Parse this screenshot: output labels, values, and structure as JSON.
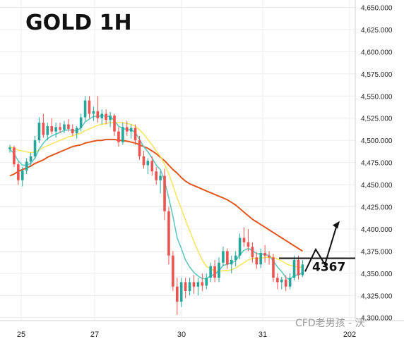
{
  "chart_data": {
    "type": "candlestick",
    "title": "GOLD 1H",
    "y_ticks": [
      "4,650.000",
      "4,625.000",
      "4,600.000",
      "4,575.000",
      "4,550.000",
      "4,525.000",
      "4,500.000",
      "4,475.000",
      "4,450.000",
      "4,425.000",
      "4,400.000",
      "4,375.000",
      "4,350.000",
      "4,325.000",
      "4,300.000"
    ],
    "y_tick_values": [
      4650,
      4625,
      4600,
      4575,
      4550,
      4525,
      4500,
      4475,
      4450,
      4425,
      4400,
      4375,
      4350,
      4325,
      4300
    ],
    "x_ticks": [
      "25",
      "27",
      "30",
      "31",
      "202"
    ],
    "ylim": [
      4299,
      4652
    ],
    "grid": true,
    "level": {
      "value": 4367,
      "label": "4367"
    },
    "watermark": "CFD老男孩 - 沃",
    "colors": {
      "up": "#26a69a",
      "down": "#ef5350",
      "fast_ma": "#5ec8c0",
      "mid_ma": "#f5e663",
      "slow_ma": "#e0561e",
      "grid": "#ececec"
    },
    "candles": [
      [
        4490,
        4495,
        4486,
        4492
      ],
      [
        4492,
        4494,
        4470,
        4473
      ],
      [
        4473,
        4476,
        4450,
        4455
      ],
      [
        4455,
        4470,
        4448,
        4466
      ],
      [
        4466,
        4480,
        4462,
        4476
      ],
      [
        4476,
        4486,
        4470,
        4482
      ],
      [
        4482,
        4505,
        4479,
        4500
      ],
      [
        4500,
        4526,
        4497,
        4520
      ],
      [
        4520,
        4530,
        4503,
        4506
      ],
      [
        4506,
        4520,
        4500,
        4516
      ],
      [
        4516,
        4525,
        4507,
        4510
      ],
      [
        4510,
        4520,
        4503,
        4515
      ],
      [
        4515,
        4520,
        4508,
        4512
      ],
      [
        4512,
        4522,
        4508,
        4518
      ],
      [
        4518,
        4524,
        4510,
        4513
      ],
      [
        4513,
        4518,
        4505,
        4508
      ],
      [
        4508,
        4516,
        4502,
        4514
      ],
      [
        4514,
        4530,
        4510,
        4526
      ],
      [
        4526,
        4550,
        4522,
        4545
      ],
      [
        4545,
        4550,
        4525,
        4530
      ],
      [
        4530,
        4538,
        4522,
        4533
      ],
      [
        4533,
        4550,
        4520,
        4525
      ],
      [
        4525,
        4535,
        4518,
        4530
      ],
      [
        4530,
        4535,
        4518,
        4523
      ],
      [
        4523,
        4532,
        4515,
        4528
      ],
      [
        4528,
        4530,
        4505,
        4510
      ],
      [
        4510,
        4515,
        4493,
        4498
      ],
      [
        4498,
        4520,
        4495,
        4515
      ],
      [
        4515,
        4522,
        4505,
        4510
      ],
      [
        4510,
        4518,
        4502,
        4514
      ],
      [
        4514,
        4518,
        4495,
        4500
      ],
      [
        4500,
        4505,
        4478,
        4482
      ],
      [
        4482,
        4488,
        4468,
        4472
      ],
      [
        4472,
        4480,
        4462,
        4477
      ],
      [
        4477,
        4482,
        4460,
        4465
      ],
      [
        4465,
        4470,
        4450,
        4455
      ],
      [
        4455,
        4465,
        4440,
        4460
      ],
      [
        4460,
        4468,
        4410,
        4420
      ],
      [
        4420,
        4425,
        4360,
        4370
      ],
      [
        4370,
        4375,
        4330,
        4335
      ],
      [
        4335,
        4345,
        4303,
        4318
      ],
      [
        4318,
        4345,
        4312,
        4340
      ],
      [
        4340,
        4345,
        4322,
        4330
      ],
      [
        4330,
        4345,
        4325,
        4340
      ],
      [
        4340,
        4348,
        4327,
        4335
      ],
      [
        4335,
        4345,
        4325,
        4340
      ],
      [
        4340,
        4350,
        4330,
        4336
      ],
      [
        4336,
        4350,
        4332,
        4345
      ],
      [
        4345,
        4362,
        4340,
        4358
      ],
      [
        4358,
        4365,
        4340,
        4345
      ],
      [
        4345,
        4368,
        4340,
        4362
      ],
      [
        4362,
        4380,
        4358,
        4375
      ],
      [
        4375,
        4378,
        4355,
        4360
      ],
      [
        4360,
        4370,
        4350,
        4365
      ],
      [
        4365,
        4375,
        4358,
        4370
      ],
      [
        4370,
        4395,
        4366,
        4390
      ],
      [
        4390,
        4402,
        4380,
        4385
      ],
      [
        4385,
        4400,
        4375,
        4380
      ],
      [
        4380,
        4385,
        4362,
        4368
      ],
      [
        4368,
        4374,
        4355,
        4360
      ],
      [
        4360,
        4378,
        4356,
        4373
      ],
      [
        4373,
        4382,
        4362,
        4370
      ],
      [
        4370,
        4375,
        4360,
        4368
      ],
      [
        4368,
        4372,
        4340,
        4345
      ],
      [
        4345,
        4350,
        4332,
        4340
      ],
      [
        4340,
        4346,
        4332,
        4343
      ],
      [
        4343,
        4348,
        4330,
        4335
      ],
      [
        4335,
        4350,
        4332,
        4345
      ],
      [
        4345,
        4370,
        4342,
        4365
      ],
      [
        4365,
        4370,
        4343,
        4348
      ],
      [
        4348,
        4365,
        4346,
        4360
      ]
    ],
    "ma_fast": [
      4490,
      4485,
      4477,
      4472,
      4472,
      4474,
      4480,
      4490,
      4497,
      4502,
      4505,
      4507,
      4509,
      4511,
      4512,
      4511,
      4511,
      4514,
      4521,
      4524,
      4527,
      4527,
      4528,
      4527,
      4527,
      4522,
      4516,
      4514,
      4512,
      4512,
      4509,
      4501,
      4493,
      4487,
      4480,
      4472,
      4467,
      4454,
      4435,
      4414,
      4390,
      4378,
      4365,
      4357,
      4351,
      4347,
      4344,
      4344,
      4347,
      4349,
      4353,
      4359,
      4360,
      4362,
      4364,
      4371,
      4376,
      4378,
      4376,
      4372,
      4372,
      4371,
      4370,
      4364,
      4357,
      4352,
      4345,
      4343,
      4348,
      4348,
      4351
    ],
    "ma_mid": [
      4493,
      4491,
      4489,
      4488,
      4487,
      4486,
      4487,
      4489,
      4492,
      4494,
      4496,
      4498,
      4500,
      4502,
      4504,
      4505,
      4507,
      4508,
      4511,
      4513,
      4515,
      4517,
      4518,
      4519,
      4520,
      4520,
      4520,
      4520,
      4519,
      4518,
      4516,
      4512,
      4507,
      4501,
      4495,
      4488,
      4482,
      4473,
      4462,
      4449,
      4435,
      4423,
      4410,
      4398,
      4386,
      4375,
      4365,
      4358,
      4355,
      4353,
      4352,
      4353,
      4353,
      4354,
      4356,
      4359,
      4362,
      4365,
      4367,
      4367,
      4367,
      4368,
      4368,
      4368,
      4366,
      4364,
      4361,
      4359,
      4358,
      4357,
      4357
    ],
    "ma_slow": [
      4460,
      4462,
      4465,
      4467,
      4469,
      4471,
      4474,
      4476,
      4478,
      4481,
      4483,
      4485,
      4487,
      4489,
      4491,
      4493,
      4494,
      4495,
      4497,
      4498,
      4499,
      4500,
      4500,
      4501,
      4501,
      4501,
      4500,
      4500,
      4499,
      4498,
      4497,
      4495,
      4493,
      4491,
      4488,
      4485,
      4481,
      4477,
      4472,
      4467,
      4463,
      4458,
      4454,
      4451,
      4449,
      4447,
      4445,
      4443,
      4441,
      4439,
      4437,
      4435,
      4433,
      4430,
      4427,
      4423,
      4419,
      4415,
      4411,
      4408,
      4405,
      4402,
      4399,
      4396,
      4393,
      4390,
      4387,
      4384,
      4381,
      4378,
      4375
    ]
  }
}
